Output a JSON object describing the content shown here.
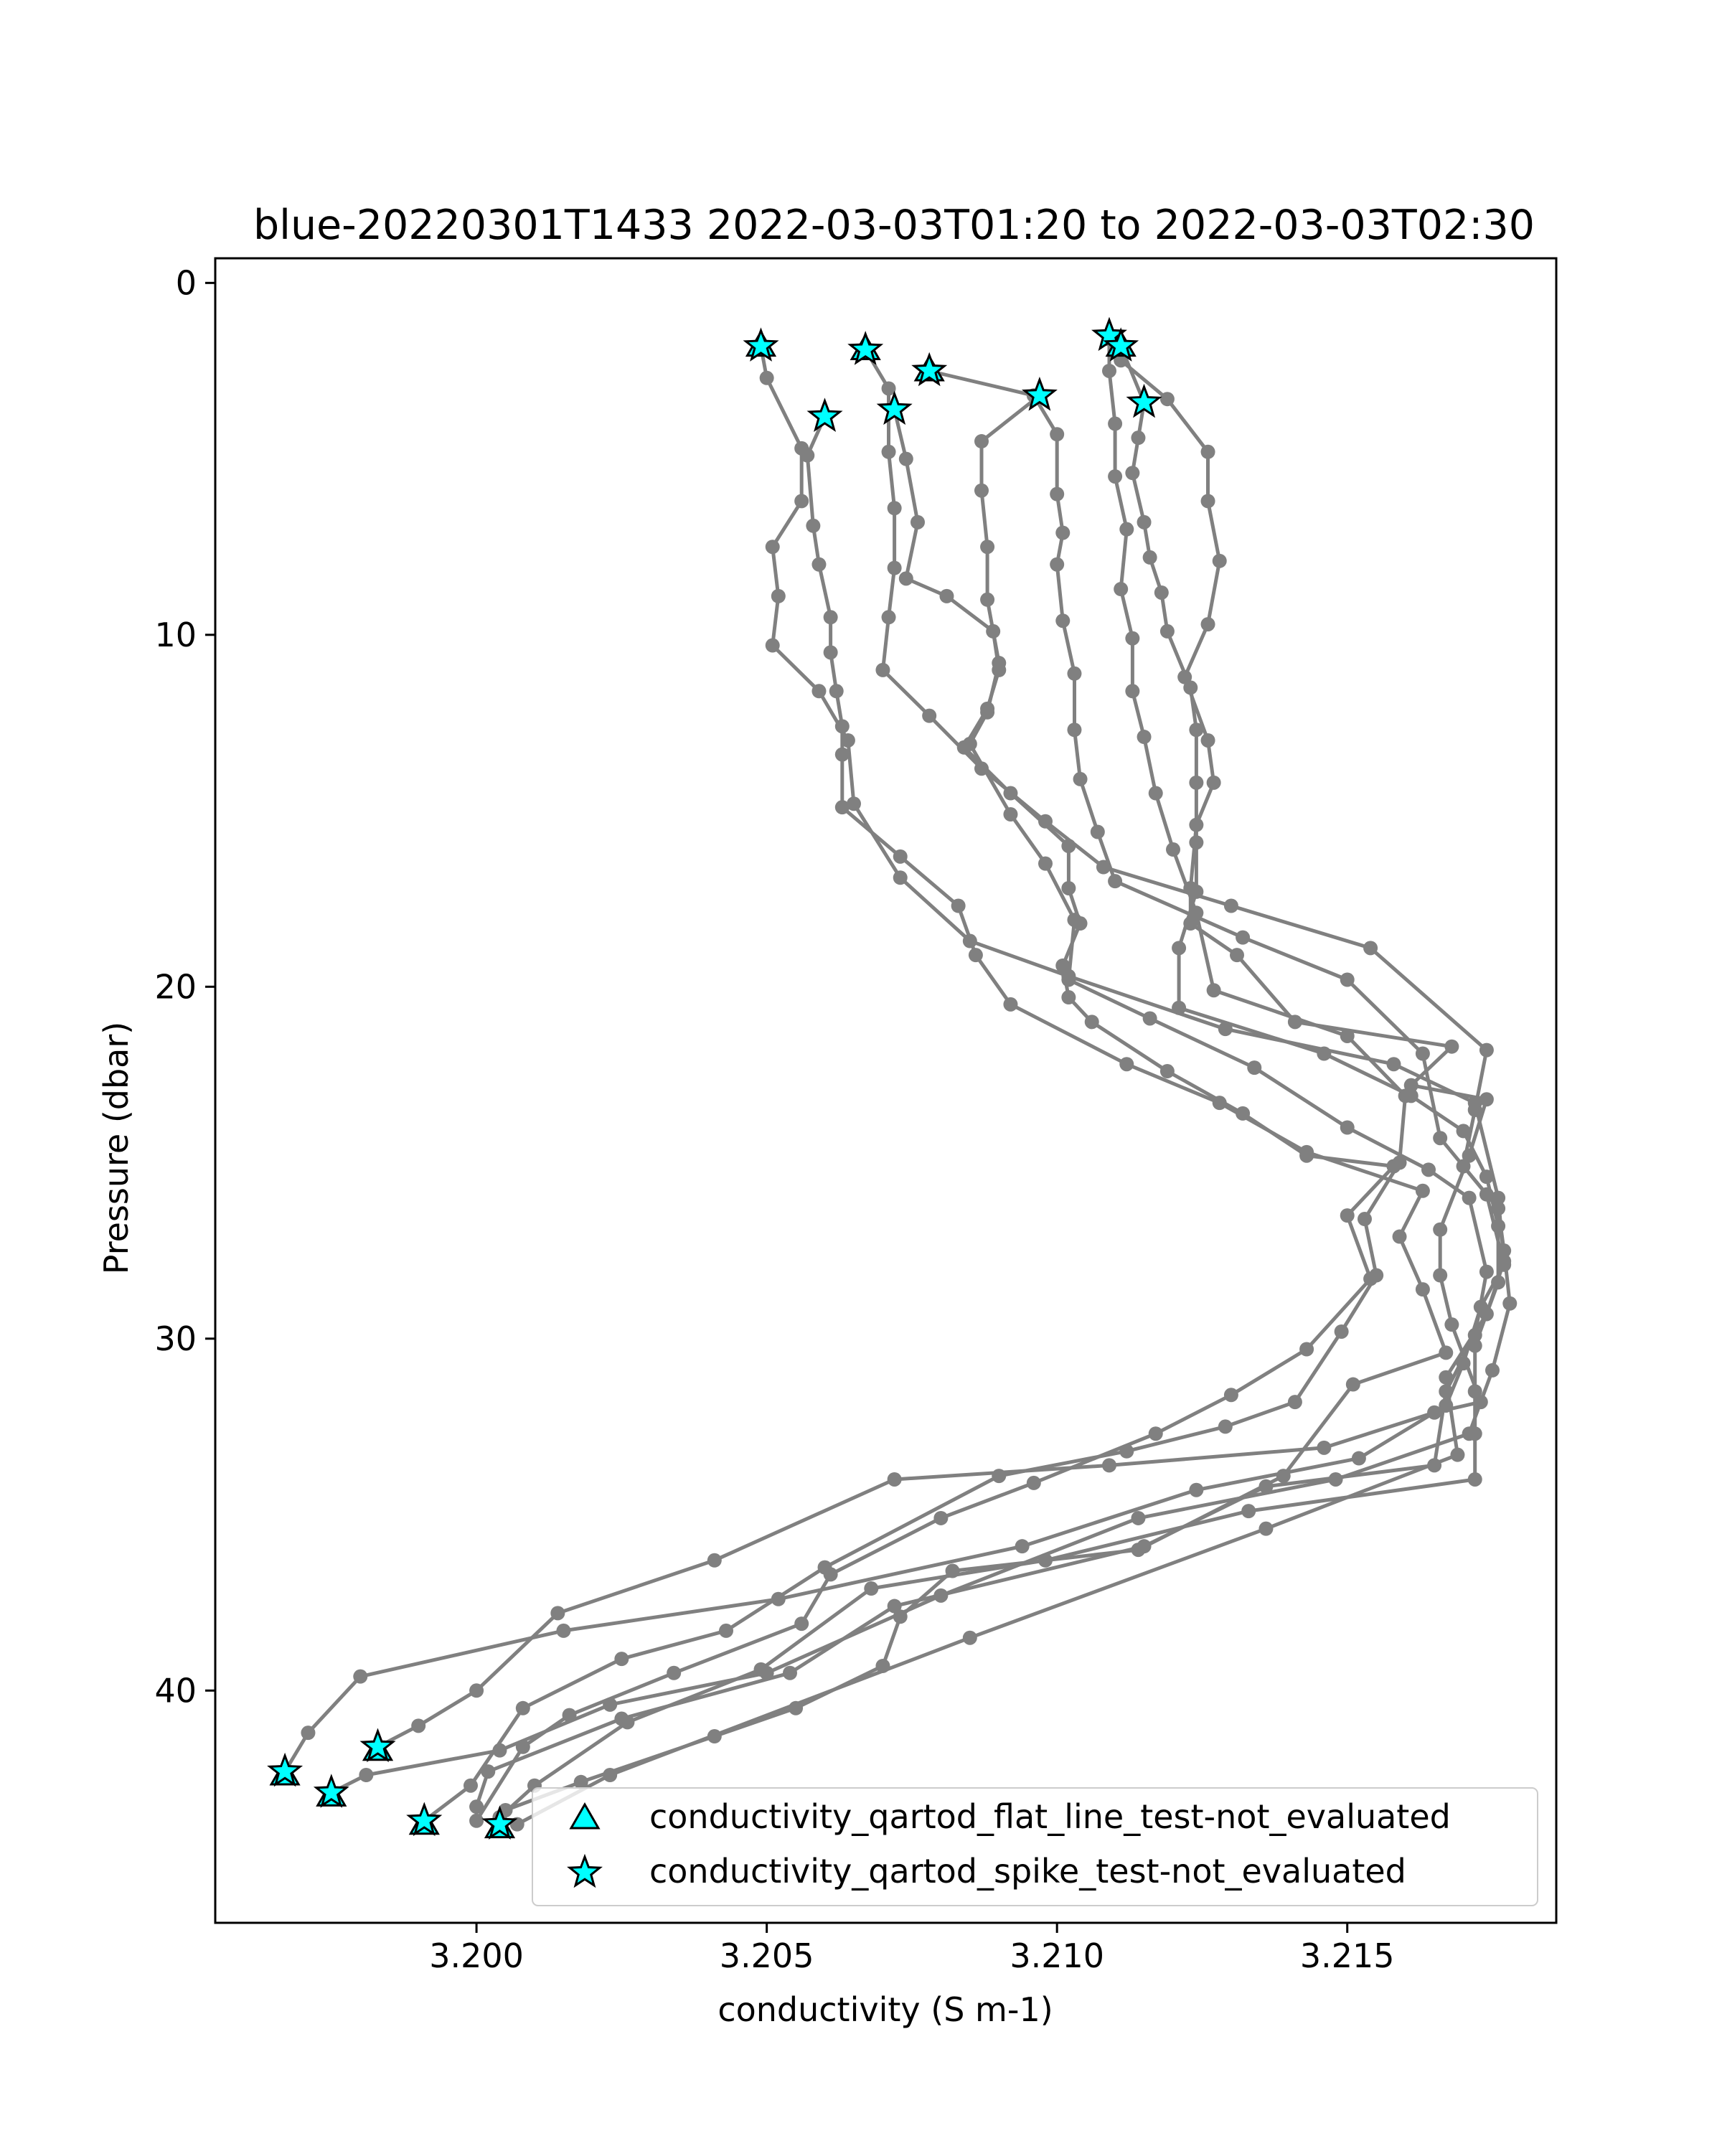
{
  "chart_data": {
    "type": "line",
    "title": "blue-20220301T1433 2022-03-03T01:20 to 2022-03-03T02:30",
    "xlabel": "conductivity (S m-1)",
    "ylabel": "Pressure (dbar)",
    "xlim": [
      3.1955,
      3.2186
    ],
    "ylim": [
      46.6,
      -0.7
    ],
    "y_inverted": true,
    "grid": false,
    "x_ticks": [
      "3.200",
      "3.205",
      "3.210",
      "3.215"
    ],
    "y_ticks": [
      "0",
      "10",
      "20",
      "30",
      "40"
    ],
    "x_tick_values": [
      3.2,
      3.205,
      3.21,
      3.215
    ],
    "y_tick_values": [
      0,
      10,
      20,
      30,
      40
    ],
    "line_color": "#808080",
    "flag_color": "#00ffff",
    "legend": {
      "position": "lower-right",
      "entries": [
        {
          "label": "conductivity_qartod_flat_line_test-not_evaluated",
          "marker": "triangle"
        },
        {
          "label": "conductivity_qartod_spike_test-not_evaluated",
          "marker": "star"
        }
      ]
    },
    "series": [
      {
        "values": [
          [
            3.2049,
            1.8
          ],
          [
            3.205,
            2.7
          ],
          [
            3.2056,
            4.7
          ],
          [
            3.2056,
            6.2
          ],
          [
            3.2051,
            7.5
          ],
          [
            3.2052,
            8.9
          ],
          [
            3.2051,
            10.3
          ],
          [
            3.2059,
            11.6
          ],
          [
            3.2064,
            13.0
          ],
          [
            3.2065,
            14.8
          ],
          [
            3.2073,
            16.9
          ],
          [
            3.2085,
            18.7
          ],
          [
            3.2102,
            19.7
          ],
          [
            3.2129,
            21.2
          ],
          [
            3.2158,
            22.2
          ],
          [
            3.2172,
            23.3
          ],
          [
            3.2176,
            26.0
          ],
          [
            3.2177,
            27.8
          ],
          [
            3.2174,
            29.3
          ],
          [
            3.2167,
            31.1
          ],
          [
            3.2169,
            33.3
          ],
          [
            3.2136,
            35.4
          ],
          [
            3.2085,
            38.5
          ],
          [
            3.2023,
            42.4
          ],
          [
            3.2007,
            43.8
          ]
        ]
      },
      {
        "values": [
          [
            3.2067,
            1.9
          ],
          [
            3.2071,
            3.0
          ],
          [
            3.2071,
            4.8
          ],
          [
            3.2072,
            6.4
          ],
          [
            3.2072,
            8.1
          ],
          [
            3.2071,
            9.5
          ],
          [
            3.207,
            11.0
          ],
          [
            3.2078,
            12.3
          ],
          [
            3.2087,
            13.8
          ],
          [
            3.2098,
            15.3
          ],
          [
            3.2108,
            16.6
          ],
          [
            3.213,
            17.7
          ],
          [
            3.2154,
            18.9
          ],
          [
            3.2174,
            21.8
          ],
          [
            3.2172,
            23.5
          ],
          [
            3.217,
            25.1
          ],
          [
            3.2176,
            26.3
          ],
          [
            3.2177,
            27.5
          ],
          [
            3.2178,
            29.0
          ],
          [
            3.2175,
            30.9
          ],
          [
            3.2171,
            32.7
          ],
          [
            3.2148,
            34.0
          ],
          [
            3.2114,
            35.1
          ],
          [
            3.208,
            37.3
          ],
          [
            3.205,
            39.5
          ],
          [
            3.2023,
            40.4
          ],
          [
            3.2004,
            41.7
          ],
          [
            3.1981,
            42.4
          ],
          [
            3.1975,
            42.9
          ]
        ]
      },
      {
        "values": [
          [
            3.2078,
            2.5
          ],
          [
            3.2096,
            3.2
          ],
          [
            3.21,
            4.3
          ],
          [
            3.21,
            6.0
          ],
          [
            3.2101,
            7.1
          ],
          [
            3.21,
            8.0
          ],
          [
            3.2101,
            9.6
          ],
          [
            3.2103,
            11.1
          ],
          [
            3.2103,
            12.7
          ],
          [
            3.2104,
            14.1
          ],
          [
            3.2107,
            15.6
          ],
          [
            3.211,
            17.0
          ],
          [
            3.2132,
            18.6
          ],
          [
            3.215,
            19.8
          ],
          [
            3.2163,
            21.9
          ],
          [
            3.2166,
            24.3
          ],
          [
            3.2174,
            25.9
          ],
          [
            3.2177,
            27.9
          ],
          [
            3.2173,
            29.1
          ],
          [
            3.217,
            30.7
          ],
          [
            3.2167,
            31.9
          ],
          [
            3.2152,
            33.4
          ],
          [
            3.2124,
            34.3
          ],
          [
            3.2094,
            35.9
          ],
          [
            3.2052,
            37.4
          ],
          [
            3.2015,
            38.3
          ],
          [
            3.198,
            39.6
          ],
          [
            3.1971,
            41.2
          ],
          [
            3.1967,
            42.3
          ]
        ]
      },
      {
        "values": [
          [
            3.2109,
            1.5
          ],
          [
            3.2111,
            2.2
          ],
          [
            3.2119,
            3.3
          ],
          [
            3.2126,
            4.8
          ],
          [
            3.2126,
            6.2
          ],
          [
            3.2128,
            7.9
          ],
          [
            3.2126,
            9.7
          ],
          [
            3.2122,
            11.2
          ],
          [
            3.2126,
            13.0
          ],
          [
            3.2127,
            14.2
          ],
          [
            3.2124,
            15.4
          ],
          [
            3.2123,
            17.2
          ],
          [
            3.2123,
            18.2
          ],
          [
            3.2131,
            19.1
          ],
          [
            3.2141,
            21.0
          ],
          [
            3.2168,
            21.7
          ],
          [
            3.2161,
            22.8
          ],
          [
            3.2174,
            23.2
          ],
          [
            3.2171,
            24.8
          ],
          [
            3.2166,
            26.9
          ],
          [
            3.2166,
            28.2
          ],
          [
            3.2168,
            29.6
          ],
          [
            3.2173,
            31.8
          ],
          [
            3.2165,
            32.1
          ],
          [
            3.2146,
            33.1
          ],
          [
            3.2109,
            33.6
          ],
          [
            3.2072,
            34.0
          ],
          [
            3.2041,
            36.3
          ],
          [
            3.2014,
            37.8
          ],
          [
            3.2,
            40.0
          ],
          [
            3.199,
            41.0
          ],
          [
            3.1983,
            41.6
          ]
        ]
      },
      {
        "values": [
          [
            3.2111,
            1.8
          ],
          [
            3.2115,
            3.4
          ],
          [
            3.2114,
            4.4
          ],
          [
            3.2113,
            5.4
          ],
          [
            3.2115,
            6.8
          ],
          [
            3.2116,
            7.8
          ],
          [
            3.2118,
            8.8
          ],
          [
            3.2119,
            9.9
          ],
          [
            3.2123,
            11.5
          ],
          [
            3.2124,
            12.7
          ],
          [
            3.2124,
            14.2
          ],
          [
            3.2124,
            15.9
          ],
          [
            3.2124,
            17.3
          ],
          [
            3.2121,
            18.9
          ],
          [
            3.2121,
            20.6
          ],
          [
            3.2146,
            21.9
          ],
          [
            3.2161,
            23.1
          ],
          [
            3.217,
            24.1
          ],
          [
            3.2174,
            25.4
          ],
          [
            3.2176,
            26.8
          ],
          [
            3.2176,
            28.4
          ],
          [
            3.2172,
            30.2
          ],
          [
            3.2172,
            31.5
          ],
          [
            3.2172,
            32.7
          ],
          [
            3.2172,
            34.0
          ],
          [
            3.2133,
            34.9
          ],
          [
            3.2098,
            36.3
          ],
          [
            3.2068,
            37.1
          ],
          [
            3.2049,
            39.4
          ],
          [
            3.2026,
            40.9
          ],
          [
            3.201,
            42.7
          ],
          [
            3.2004,
            43.6
          ]
        ]
      },
      {
        "values": [
          [
            3.2109,
            1.6
          ],
          [
            3.2109,
            2.5
          ],
          [
            3.211,
            4.0
          ],
          [
            3.211,
            5.5
          ],
          [
            3.2112,
            7.0
          ],
          [
            3.2111,
            8.7
          ],
          [
            3.2113,
            10.1
          ],
          [
            3.2113,
            11.6
          ],
          [
            3.2115,
            12.9
          ],
          [
            3.2117,
            14.5
          ],
          [
            3.212,
            16.1
          ],
          [
            3.2124,
            17.9
          ],
          [
            3.2127,
            20.1
          ],
          [
            3.215,
            21.4
          ],
          [
            3.216,
            23.1
          ],
          [
            3.2159,
            25.0
          ],
          [
            3.2153,
            26.6
          ],
          [
            3.2155,
            28.2
          ],
          [
            3.2149,
            29.8
          ],
          [
            3.2141,
            31.8
          ],
          [
            3.2129,
            32.5
          ],
          [
            3.2112,
            33.2
          ],
          [
            3.209,
            33.9
          ],
          [
            3.206,
            36.5
          ],
          [
            3.2043,
            38.3
          ],
          [
            3.2025,
            39.1
          ],
          [
            3.2008,
            40.5
          ],
          [
            3.1999,
            42.7
          ],
          [
            3.1991,
            43.7
          ]
        ]
      },
      {
        "values": [
          [
            3.2097,
            3.2
          ],
          [
            3.2087,
            4.5
          ],
          [
            3.2087,
            5.9
          ],
          [
            3.2088,
            7.5
          ],
          [
            3.2088,
            9.0
          ],
          [
            3.209,
            10.8
          ],
          [
            3.2088,
            12.2
          ],
          [
            3.2085,
            13.1
          ],
          [
            3.2092,
            15.1
          ],
          [
            3.2098,
            16.5
          ],
          [
            3.2103,
            18.1
          ],
          [
            3.2102,
            19.8
          ],
          [
            3.2116,
            20.9
          ],
          [
            3.2134,
            22.3
          ],
          [
            3.215,
            24.0
          ],
          [
            3.2164,
            25.2
          ],
          [
            3.2171,
            26.0
          ],
          [
            3.2174,
            28.1
          ],
          [
            3.2172,
            29.9
          ],
          [
            3.2167,
            31.5
          ],
          [
            3.2165,
            33.6
          ],
          [
            3.2136,
            34.2
          ],
          [
            3.2115,
            35.9
          ],
          [
            3.2072,
            37.6
          ],
          [
            3.2054,
            39.5
          ],
          [
            3.2025,
            40.8
          ],
          [
            3.2002,
            42.3
          ],
          [
            3.2,
            43.3
          ]
        ]
      },
      {
        "values": [
          [
            3.206,
            3.8
          ],
          [
            3.2057,
            4.9
          ],
          [
            3.2058,
            6.9
          ],
          [
            3.2059,
            8.0
          ],
          [
            3.2061,
            9.5
          ],
          [
            3.2061,
            10.5
          ],
          [
            3.2062,
            11.6
          ],
          [
            3.2063,
            12.6
          ],
          [
            3.2063,
            13.4
          ],
          [
            3.2063,
            14.9
          ],
          [
            3.2073,
            16.3
          ],
          [
            3.2083,
            17.7
          ],
          [
            3.2086,
            19.1
          ],
          [
            3.2092,
            20.5
          ],
          [
            3.2112,
            22.2
          ],
          [
            3.2128,
            23.3
          ],
          [
            3.2143,
            24.7
          ],
          [
            3.2163,
            25.8
          ],
          [
            3.2159,
            27.1
          ],
          [
            3.2163,
            28.6
          ],
          [
            3.2167,
            30.4
          ],
          [
            3.2151,
            31.3
          ],
          [
            3.2139,
            33.9
          ],
          [
            3.2114,
            36.0
          ],
          [
            3.2082,
            36.6
          ],
          [
            3.2073,
            37.9
          ],
          [
            3.207,
            39.3
          ],
          [
            3.2055,
            40.5
          ],
          [
            3.2041,
            41.3
          ],
          [
            3.2018,
            42.6
          ],
          [
            3.2005,
            43.4
          ]
        ]
      },
      {
        "values": [
          [
            3.2072,
            3.6
          ],
          [
            3.2074,
            5.0
          ],
          [
            3.2076,
            6.8
          ],
          [
            3.2074,
            8.4
          ],
          [
            3.2081,
            8.9
          ],
          [
            3.2089,
            9.9
          ],
          [
            3.209,
            11.0
          ],
          [
            3.2088,
            12.1
          ],
          [
            3.2084,
            13.2
          ],
          [
            3.2092,
            14.5
          ],
          [
            3.2102,
            16.0
          ],
          [
            3.2102,
            17.2
          ],
          [
            3.2104,
            18.2
          ],
          [
            3.2101,
            19.4
          ],
          [
            3.2102,
            20.3
          ],
          [
            3.2106,
            21.0
          ],
          [
            3.2119,
            22.4
          ],
          [
            3.2132,
            23.6
          ],
          [
            3.2143,
            24.8
          ],
          [
            3.2158,
            25.1
          ],
          [
            3.215,
            26.5
          ],
          [
            3.2154,
            28.3
          ],
          [
            3.2143,
            30.3
          ],
          [
            3.213,
            31.6
          ],
          [
            3.2117,
            32.7
          ],
          [
            3.2096,
            34.1
          ],
          [
            3.208,
            35.1
          ],
          [
            3.2061,
            36.7
          ],
          [
            3.2056,
            38.1
          ],
          [
            3.2034,
            39.5
          ],
          [
            3.2016,
            40.7
          ],
          [
            3.2008,
            41.6
          ],
          [
            3.2,
            43.7
          ]
        ]
      }
    ],
    "flags": {
      "spike_stars": [
        [
          3.2049,
          1.8
        ],
        [
          3.2067,
          1.9
        ],
        [
          3.2078,
          2.5
        ],
        [
          3.2097,
          3.2
        ],
        [
          3.2109,
          1.5
        ],
        [
          3.2111,
          1.8
        ],
        [
          3.2115,
          3.4
        ],
        [
          3.206,
          3.8
        ],
        [
          3.2072,
          3.6
        ],
        [
          3.1967,
          42.3
        ],
        [
          3.1975,
          42.9
        ],
        [
          3.1983,
          41.6
        ],
        [
          3.1991,
          43.7
        ],
        [
          3.2004,
          43.8
        ]
      ],
      "flat_line_triangles": [
        [
          3.2049,
          1.8
        ],
        [
          3.2067,
          1.9
        ],
        [
          3.2078,
          2.5
        ],
        [
          3.2111,
          1.8
        ],
        [
          3.1967,
          42.4
        ],
        [
          3.1975,
          43.0
        ],
        [
          3.1983,
          41.7
        ],
        [
          3.1991,
          43.8
        ],
        [
          3.2004,
          43.9
        ]
      ]
    }
  }
}
